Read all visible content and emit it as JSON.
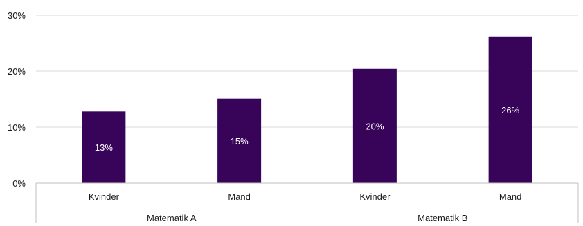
{
  "chart_data": {
    "type": "bar",
    "title": "",
    "xlabel": "",
    "ylabel": "",
    "ylim": [
      0,
      30
    ],
    "yticks": [
      0,
      10,
      20,
      30
    ],
    "ytick_labels": [
      "0%",
      "10%",
      "20%",
      "30%"
    ],
    "grid": true,
    "legend": "none",
    "groups": [
      {
        "label": "Matematik A",
        "categories": [
          "Kvinder",
          "Mand"
        ],
        "values": [
          12.8,
          15.1
        ],
        "data_labels": [
          "13%",
          "15%"
        ]
      },
      {
        "label": "Matematik B",
        "categories": [
          "Kvinder",
          "Mand"
        ],
        "values": [
          20.4,
          26.2
        ],
        "data_labels": [
          "20%",
          "26%"
        ]
      }
    ],
    "colors": {
      "bar": "#38045a",
      "grid": "#d9d9d9",
      "axis": "#bfbfbf",
      "text": "#1a1a1a",
      "data_label": "#ffffff"
    }
  }
}
